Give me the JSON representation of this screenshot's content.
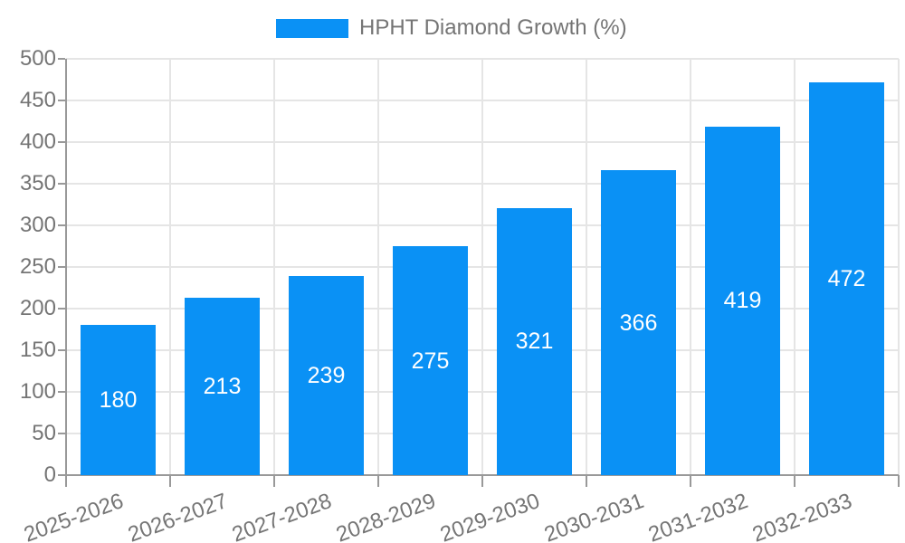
{
  "legend": {
    "label": "HPHT Diamond Growth (%)"
  },
  "colors": {
    "bar": "#0a91f5",
    "grid": "#e5e5e5",
    "axis": "#999999",
    "tick_text": "#757575",
    "value_text": "#ffffff",
    "background": "#ffffff"
  },
  "chart_data": {
    "type": "bar",
    "title": "HPHT Diamond Growth (%)",
    "categories": [
      "2025-2026",
      "2026-2027",
      "2027-2028",
      "2028-2029",
      "2029-2030",
      "2030-2031",
      "2031-2032",
      "2032-2033"
    ],
    "values": [
      180,
      213,
      239,
      275,
      321,
      366,
      419,
      472
    ],
    "xlabel": "",
    "ylabel": "",
    "ylim": [
      0,
      500
    ],
    "ytick_interval": 50,
    "yticks": [
      0,
      50,
      100,
      150,
      200,
      250,
      300,
      350,
      400,
      450,
      500
    ],
    "grid": true,
    "legend_position": "top",
    "value_label_position": "inside-center",
    "xtick_rotation_deg": 20,
    "bar_color": "#0a91f5"
  }
}
